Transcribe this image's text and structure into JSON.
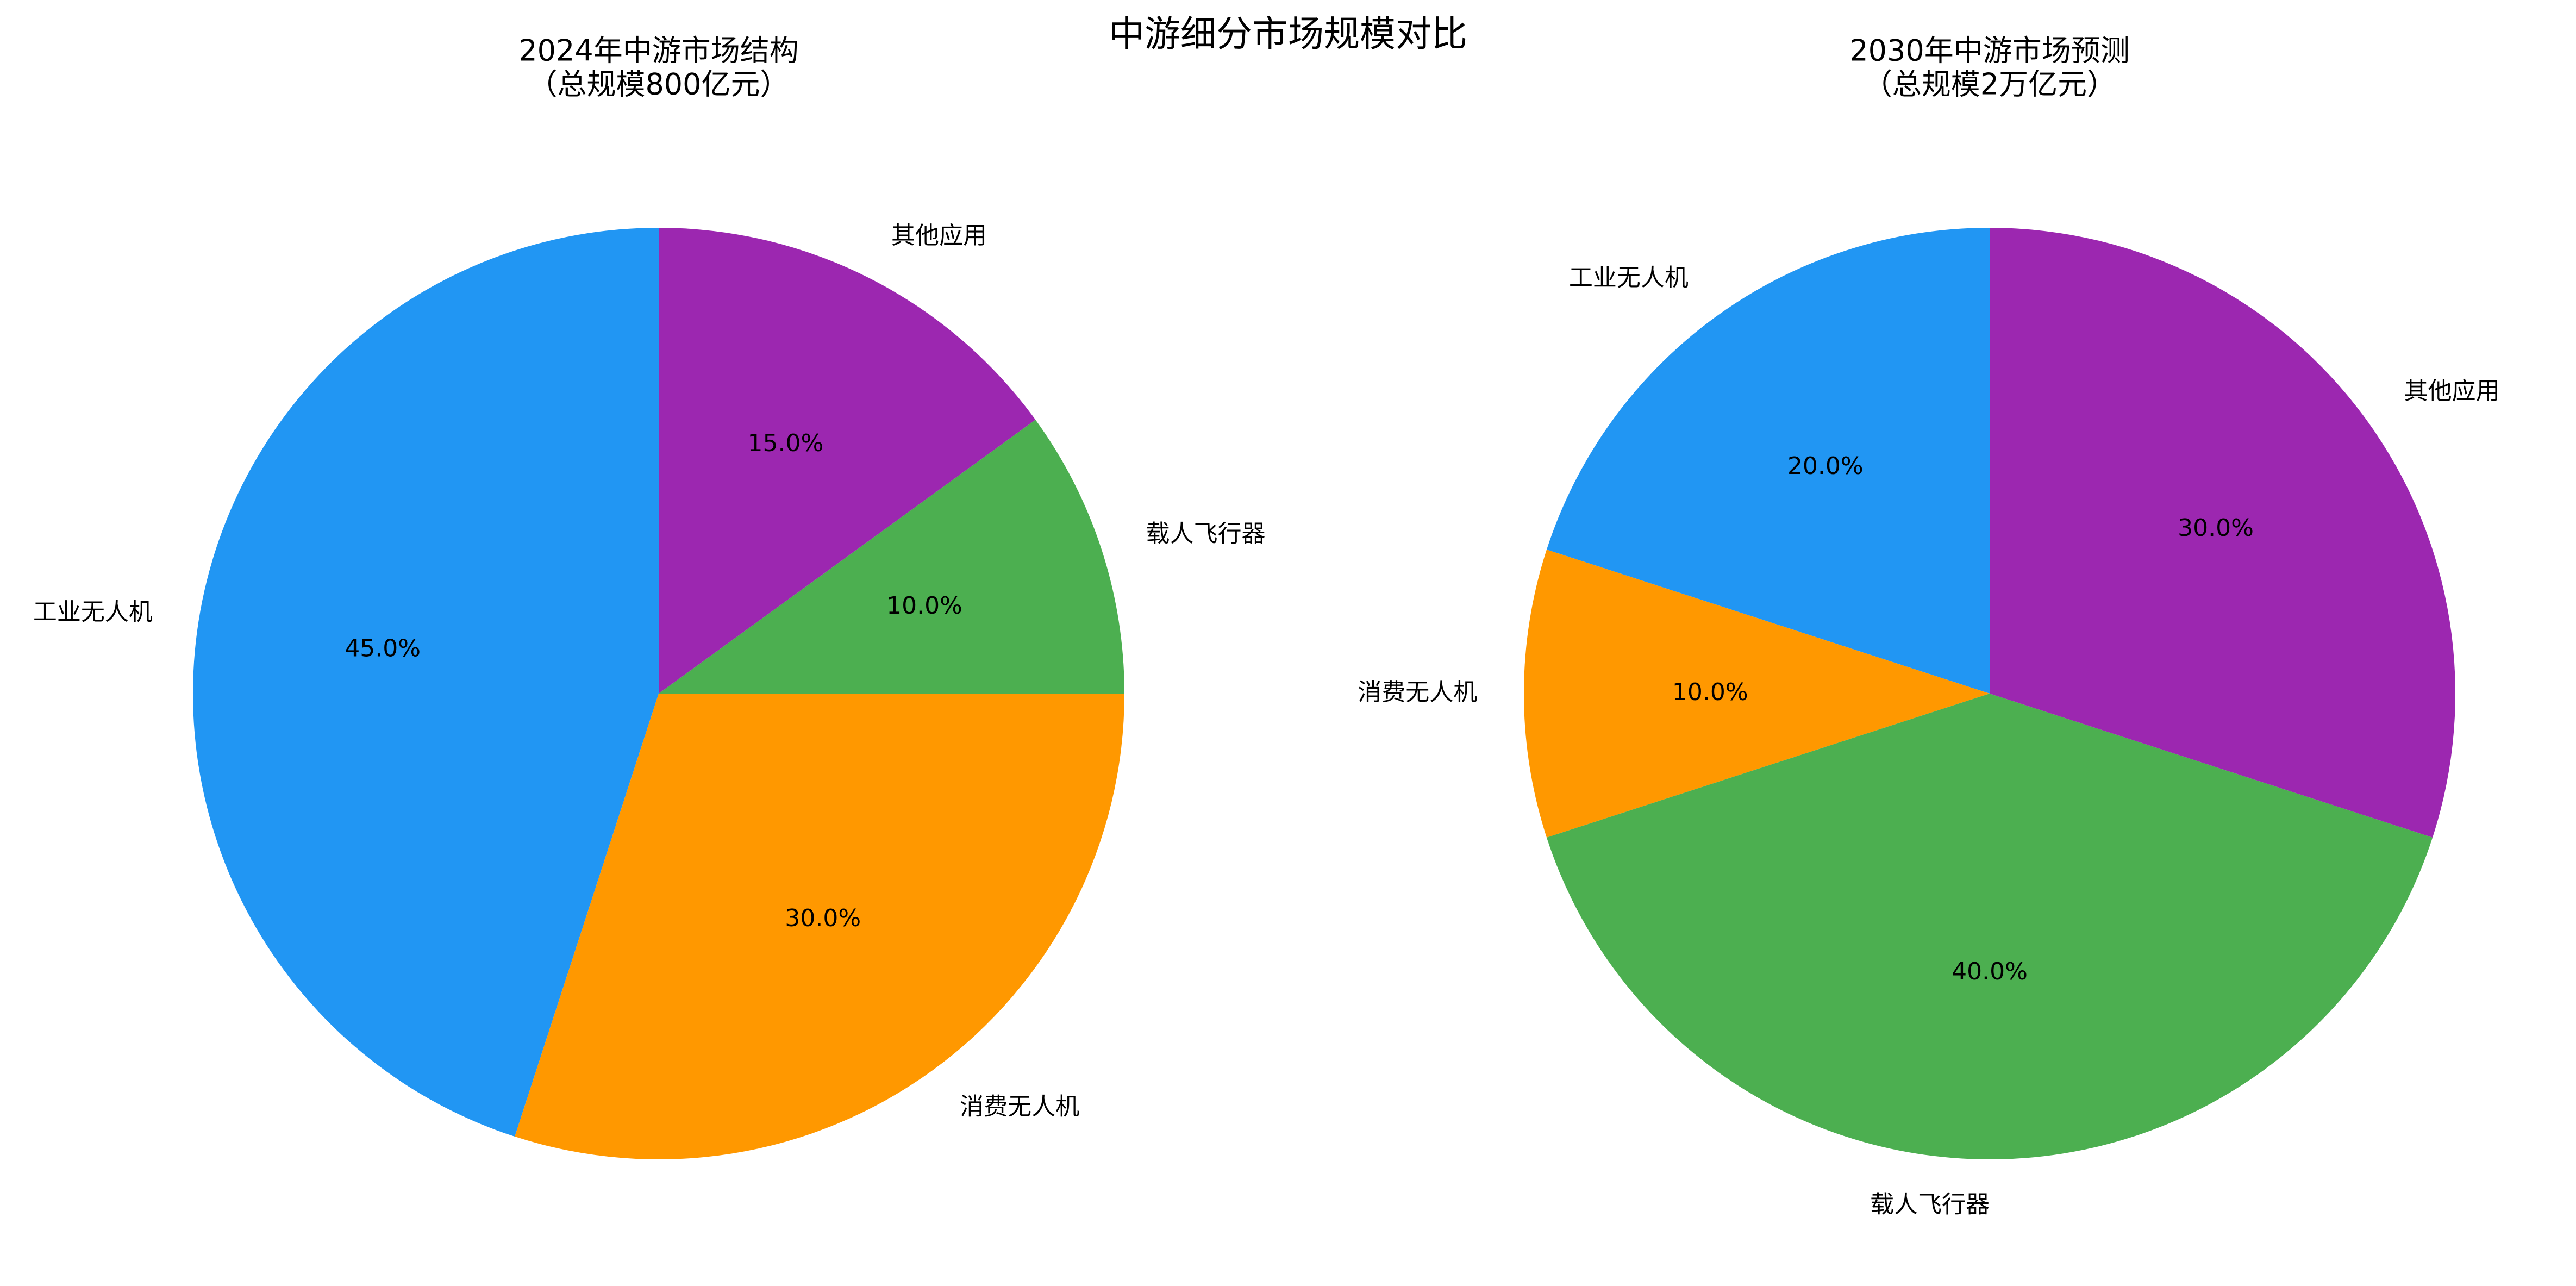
{
  "title": "中游细分市场规模对比",
  "chart_data": [
    {
      "type": "pie",
      "title": [
        "2024年中游市场结构",
        "（总规模800亿元）"
      ],
      "categories": [
        "工业无人机",
        "消费无人机",
        "载人飞行器",
        "其他应用"
      ],
      "values": [
        45,
        30,
        10,
        15
      ],
      "value_labels": [
        "45.0%",
        "30.0%",
        "10.0%",
        "15.0%"
      ],
      "colors": [
        "#2196F3",
        "#FF9800",
        "#4CAF50",
        "#9C27B0"
      ]
    },
    {
      "type": "pie",
      "title": [
        "2030年中游市场预测",
        "（总规模2万亿元）"
      ],
      "categories": [
        "工业无人机",
        "消费无人机",
        "载人飞行器",
        "其他应用"
      ],
      "values": [
        20,
        10,
        40,
        30
      ],
      "value_labels": [
        "20.0%",
        "10.0%",
        "40.0%",
        "30.0%"
      ],
      "colors": [
        "#2196F3",
        "#FF9800",
        "#4CAF50",
        "#9C27B0"
      ]
    }
  ]
}
